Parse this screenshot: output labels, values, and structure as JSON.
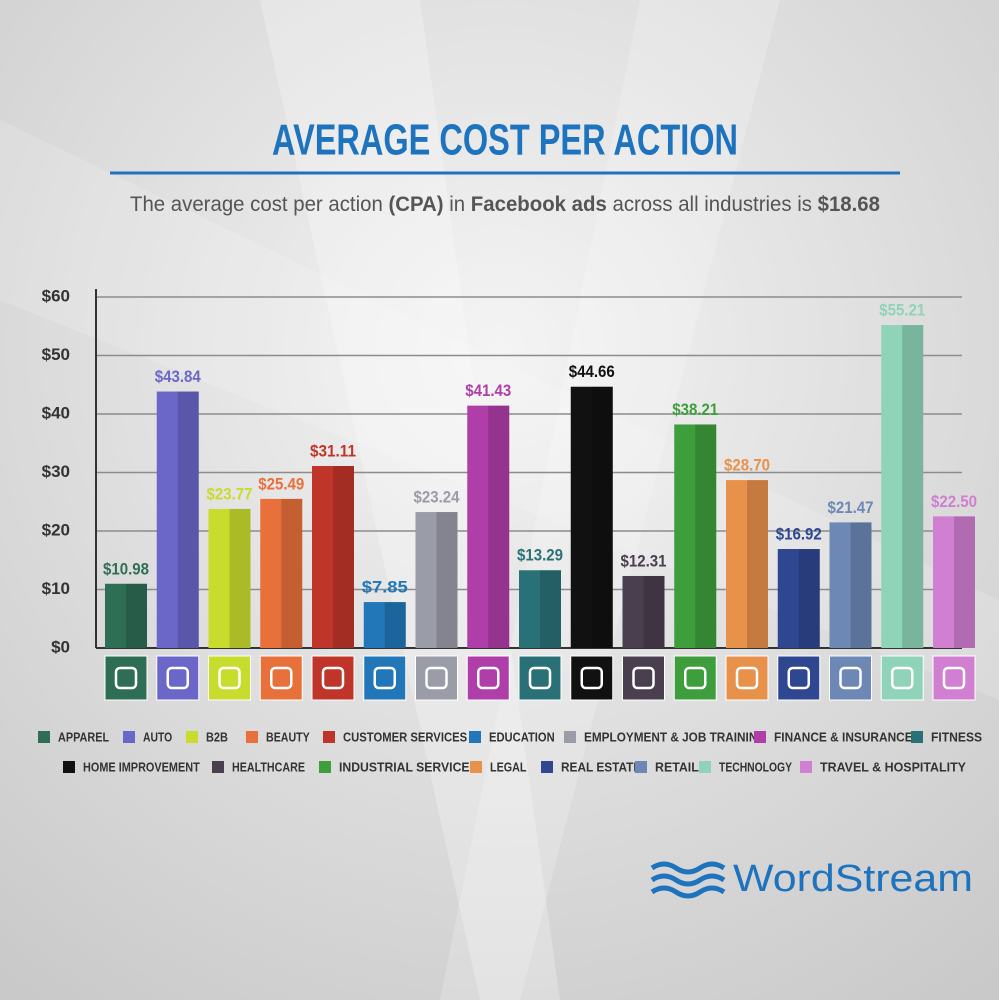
{
  "chart_data": {
    "type": "bar",
    "title": "AVERAGE COST PER ACTION",
    "subtitle": [
      "The average cost per action ",
      "(CPA)",
      " in ",
      "Facebook ads",
      " across all industries is ",
      "$18.68"
    ],
    "categories": [
      "APPAREL",
      "AUTO",
      "B2B",
      "BEAUTY",
      "CUSTOMER SERVICES",
      "EDUCATION",
      "EMPLOYMENT & JOB TRAINING",
      "FINANCE & INSURANCE",
      "FITNESS",
      "HOME IMPROVEMENT",
      "HEALTHCARE",
      "INDUSTRIAL SERVICES",
      "LEGAL",
      "REAL ESTATE",
      "RETAIL",
      "TECHNOLOGY",
      "TRAVEL & HOSPITALITY"
    ],
    "values": [
      10.98,
      43.84,
      23.77,
      25.49,
      31.11,
      7.85,
      23.24,
      41.43,
      13.29,
      44.66,
      12.31,
      38.21,
      28.7,
      16.92,
      21.47,
      55.21,
      22.5
    ],
    "value_labels": [
      "$10.98",
      "$43.84",
      "$23.77",
      "$25.49",
      "$31.11",
      "$7.85",
      "$23.24",
      "$41.43",
      "$13.29",
      "$44.66",
      "$12.31",
      "$38.21",
      "$28.70",
      "$16.92",
      "$21.47",
      "$55.21",
      "$22.50"
    ],
    "colors": [
      "#2e6e55",
      "#6a67c8",
      "#c8dc2e",
      "#e8703a",
      "#c0352a",
      "#2277b8",
      "#9a9ca8",
      "#b03ea8",
      "#2a7077",
      "#111111",
      "#4a3f4e",
      "#3f9e3c",
      "#e8914a",
      "#2f4690",
      "#6d88b4",
      "#8fd4b8",
      "#d17fd0"
    ],
    "ylim": [
      0,
      60
    ],
    "yticks": [
      {
        "value": 0,
        "label": "$0"
      },
      {
        "value": 10,
        "label": "$10"
      },
      {
        "value": 20,
        "label": "$20"
      },
      {
        "value": 30,
        "label": "$30"
      },
      {
        "value": 40,
        "label": "$40"
      },
      {
        "value": 50,
        "label": "$50"
      },
      {
        "value": 60,
        "label": "$60"
      }
    ],
    "grid": true,
    "legend": "bottom"
  },
  "brand": "WordStream"
}
